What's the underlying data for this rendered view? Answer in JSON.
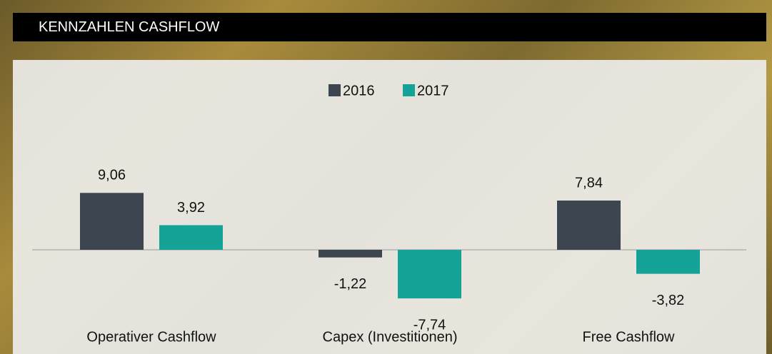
{
  "header": {
    "title": "KENNZAHLEN CASHFLOW"
  },
  "chart_data": {
    "type": "bar",
    "categories": [
      "Operativer Cashflow",
      "Capex (Investitionen)",
      "Free Cashflow"
    ],
    "series": [
      {
        "name": "2016",
        "color": "#3d4650",
        "values": [
          9.06,
          -1.22,
          7.84
        ],
        "value_labels": [
          "9,06",
          "-1,22",
          "7,84"
        ]
      },
      {
        "name": "2017",
        "color": "#14a396",
        "values": [
          3.92,
          -7.74,
          -3.82
        ],
        "value_labels": [
          "3,92",
          "-7,74",
          "-3,82"
        ]
      }
    ],
    "legend": "top"
  }
}
